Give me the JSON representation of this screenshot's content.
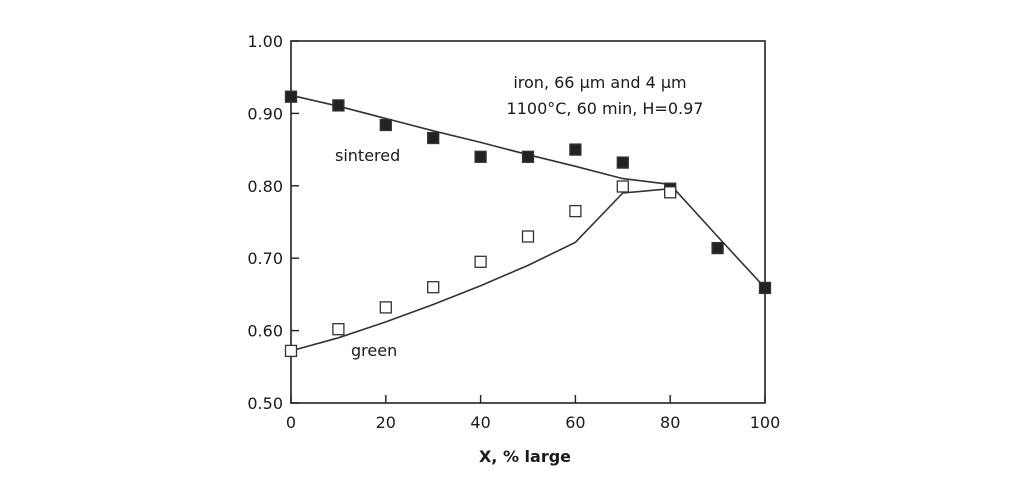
{
  "chart_data": {
    "type": "scatter",
    "xlabel": "X, % large",
    "ylabel": "",
    "xlim": [
      0,
      100
    ],
    "ylim": [
      0.5,
      1.0
    ],
    "x_ticks": [
      "0",
      "20",
      "40",
      "60",
      "80",
      "100"
    ],
    "y_ticks": [
      "0.50",
      "0.60",
      "0.70",
      "0.80",
      "0.90",
      "1.00"
    ],
    "annotations": {
      "line1": "iron, 66 µm and 4 µm",
      "line2": "1100°C, 60 min, H=0.97"
    },
    "series": [
      {
        "name": "sintered",
        "marker": "filled-square",
        "points": [
          [
            0,
            0.923
          ],
          [
            10,
            0.911
          ],
          [
            20,
            0.884
          ],
          [
            30,
            0.866
          ],
          [
            40,
            0.84
          ],
          [
            50,
            0.84
          ],
          [
            60,
            0.85
          ],
          [
            70,
            0.832
          ],
          [
            80,
            0.796
          ],
          [
            90,
            0.714
          ],
          [
            100,
            0.659
          ]
        ],
        "fit": [
          [
            0,
            0.925
          ],
          [
            10,
            0.91
          ],
          [
            20,
            0.893
          ],
          [
            30,
            0.876
          ],
          [
            40,
            0.86
          ],
          [
            50,
            0.843
          ],
          [
            60,
            0.827
          ],
          [
            70,
            0.81
          ],
          [
            80,
            0.802
          ],
          [
            90,
            0.73
          ],
          [
            100,
            0.659
          ]
        ]
      },
      {
        "name": "green",
        "marker": "open-square",
        "points": [
          [
            0,
            0.572
          ],
          [
            10,
            0.602
          ],
          [
            20,
            0.632
          ],
          [
            30,
            0.66
          ],
          [
            40,
            0.695
          ],
          [
            50,
            0.73
          ],
          [
            60,
            0.765
          ],
          [
            70,
            0.799
          ],
          [
            80,
            0.791
          ]
        ],
        "fit": [
          [
            0,
            0.572
          ],
          [
            10,
            0.59
          ],
          [
            20,
            0.612
          ],
          [
            30,
            0.636
          ],
          [
            40,
            0.662
          ],
          [
            50,
            0.69
          ],
          [
            60,
            0.722
          ],
          [
            70,
            0.79
          ],
          [
            80,
            0.796
          ]
        ]
      }
    ],
    "grid": false
  }
}
